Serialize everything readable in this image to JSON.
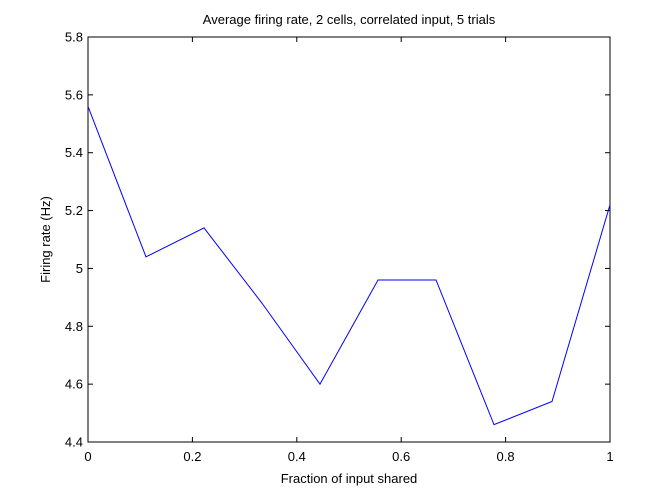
{
  "chart_data": {
    "type": "line",
    "title": "Average firing rate, 2 cells, correlated input, 5 trials",
    "xlabel": "Fraction of input shared",
    "ylabel": "Firing rate (Hz)",
    "xlim": [
      0,
      1
    ],
    "ylim": [
      4.4,
      5.8
    ],
    "xticks": [
      0,
      0.2,
      0.4,
      0.6,
      0.8,
      1
    ],
    "xtick_labels": [
      "0",
      "0.2",
      "0.4",
      "0.6",
      "0.8",
      "1"
    ],
    "yticks": [
      4.4,
      4.6,
      4.8,
      5.0,
      5.2,
      5.4,
      5.6,
      5.8
    ],
    "ytick_labels": [
      "4.4",
      "4.6",
      "4.8",
      "5",
      "5.2",
      "5.4",
      "5.6",
      "5.8"
    ],
    "grid": false,
    "series": [
      {
        "color": "#0000ff",
        "x": [
          0,
          0.1111,
          0.2222,
          0.3333,
          0.4444,
          0.5556,
          0.6667,
          0.7778,
          0.8889,
          1.0
        ],
        "y": [
          5.56,
          5.04,
          5.14,
          4.88,
          4.6,
          4.96,
          4.96,
          4.46,
          4.54,
          5.22
        ]
      }
    ]
  }
}
